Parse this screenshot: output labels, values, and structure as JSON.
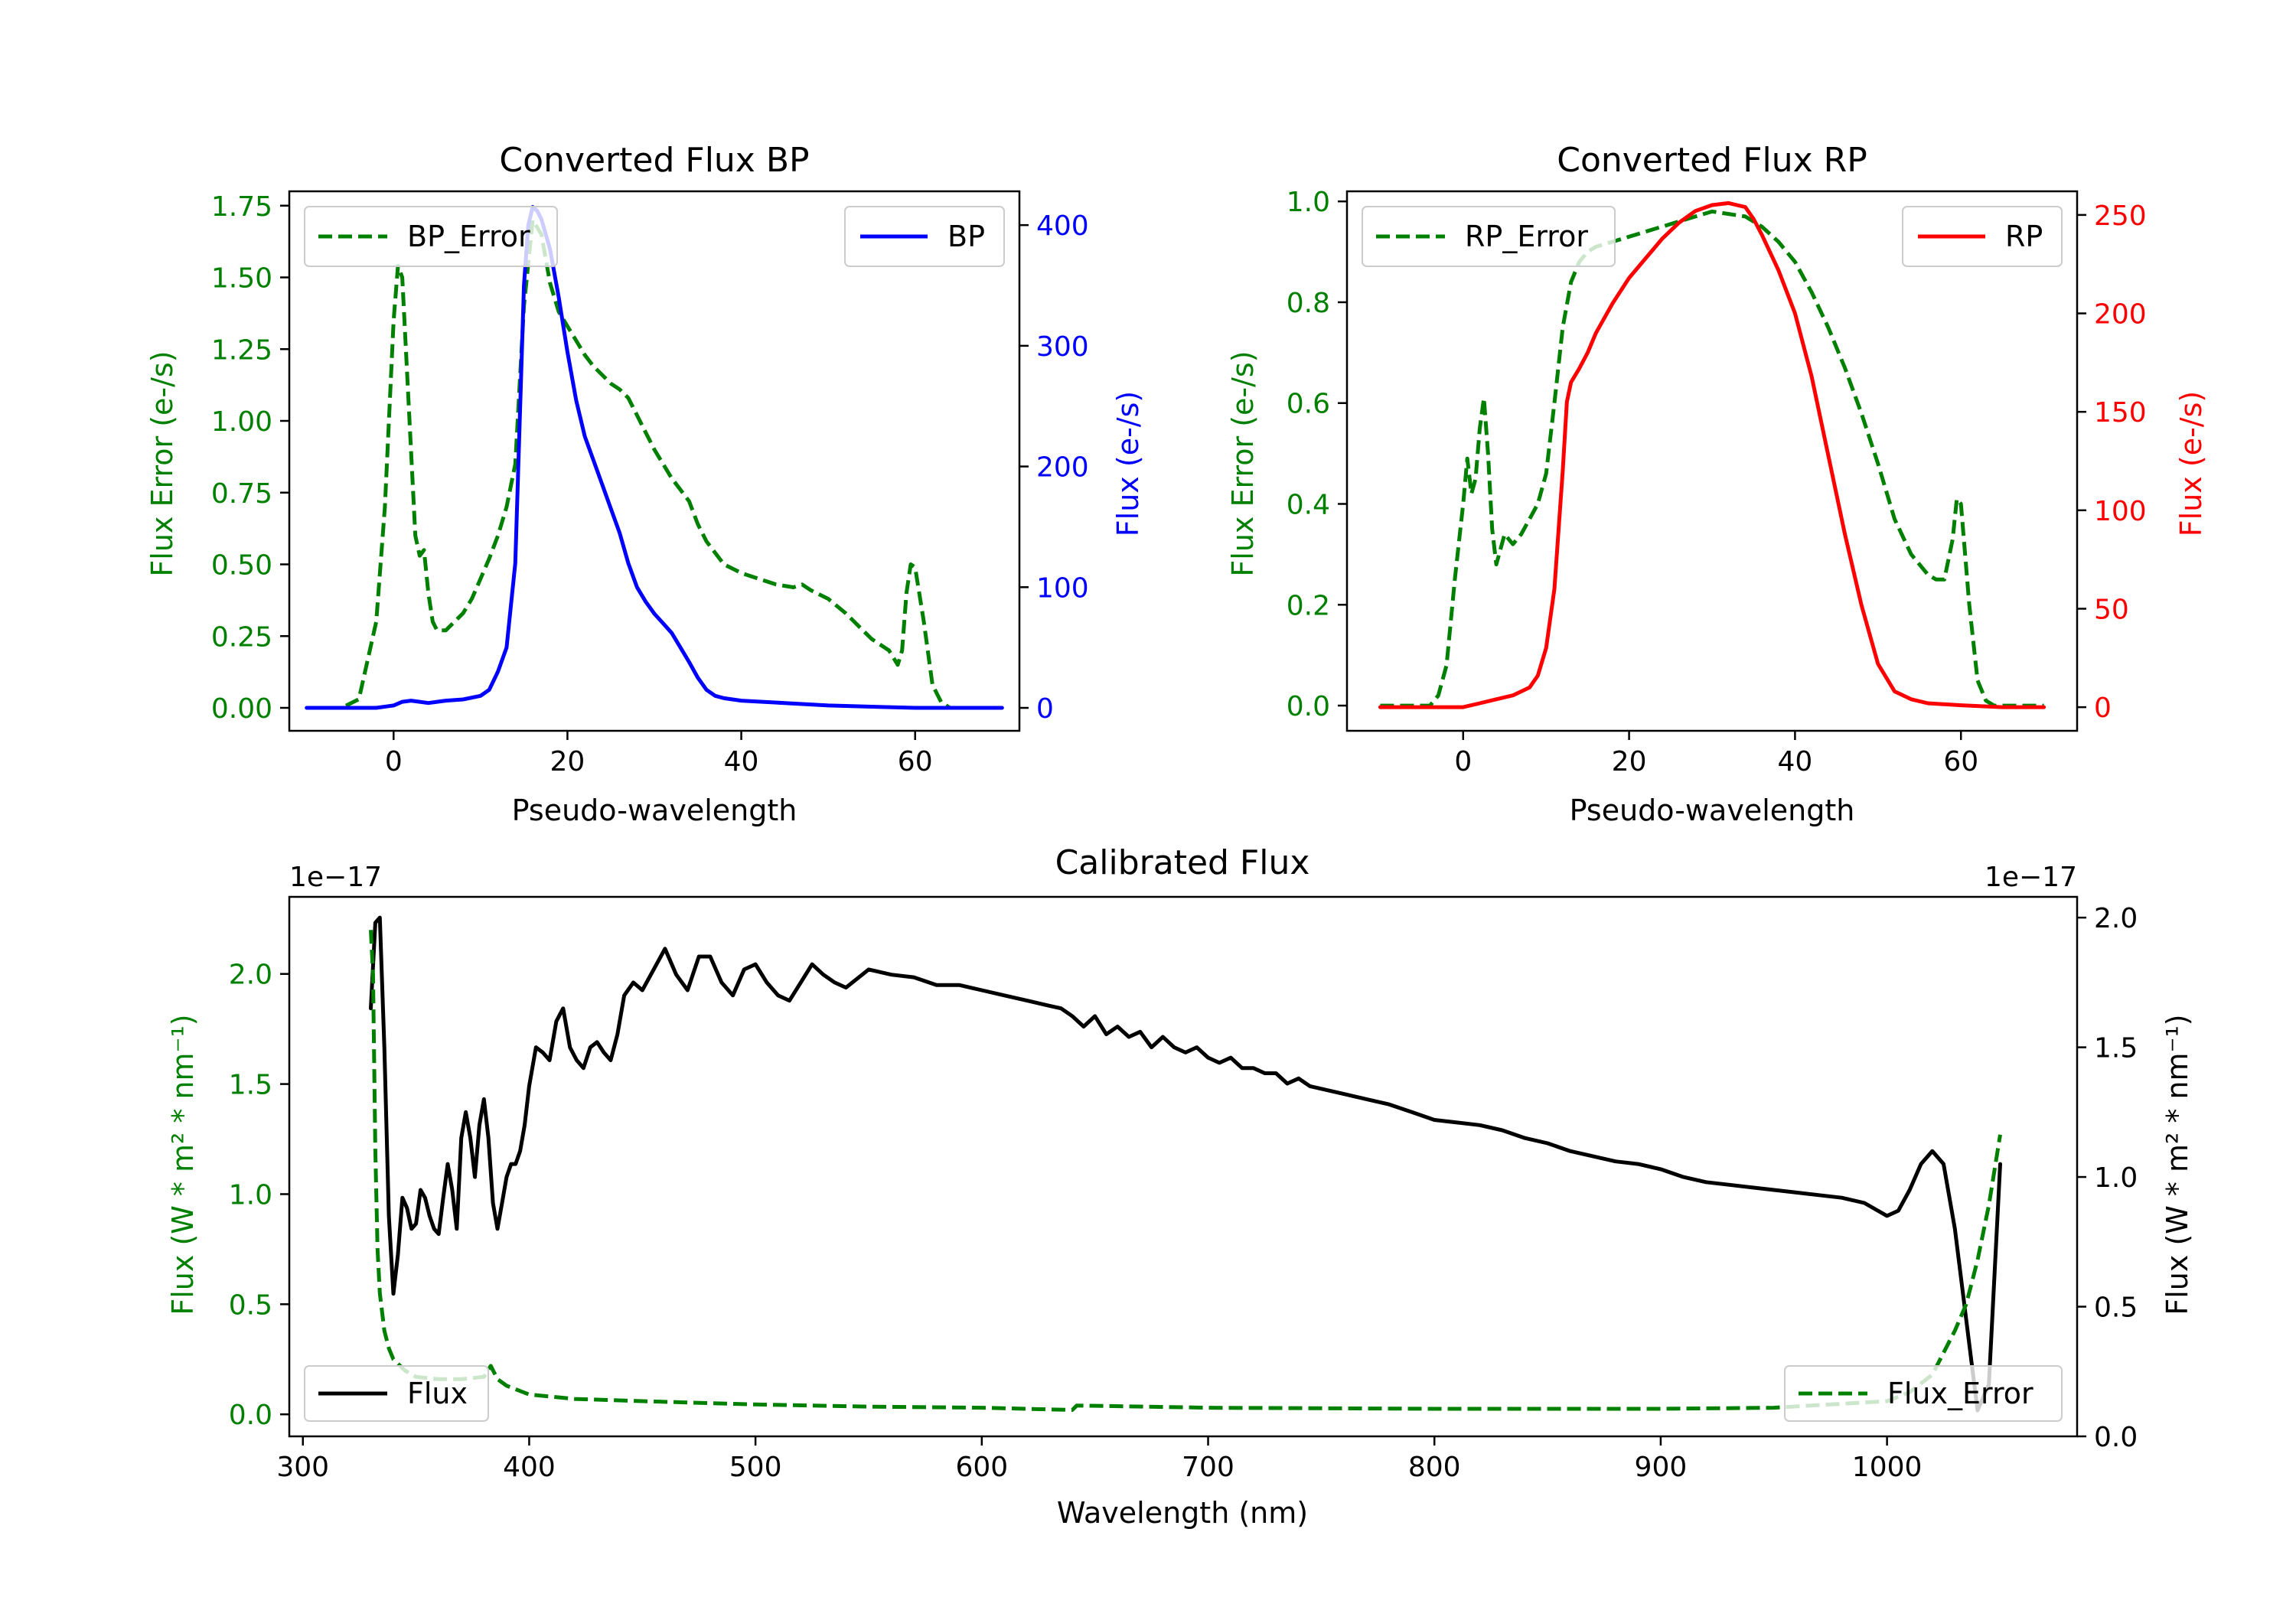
{
  "colors": {
    "bp": "#0000ff",
    "rp": "#ff0000",
    "error": "#008000",
    "flux": "#000000"
  },
  "chart_data": [
    {
      "type": "line",
      "title": "Converted Flux BP",
      "xlabel": "Pseudo-wavelength",
      "ylabel_left": "Flux Error (e-/s)",
      "ylabel_right": "Flux (e-/s)",
      "xlim": [
        -12,
        72
      ],
      "ylim_left": [
        -0.08,
        1.8
      ],
      "ylim_right": [
        -19,
        428
      ],
      "x_ticks": [
        0,
        20,
        40,
        60
      ],
      "x_tick_labels": [
        "0",
        "20",
        "40",
        "60"
      ],
      "y_left_ticks": [
        0,
        0.25,
        0.5,
        0.75,
        1.0,
        1.25,
        1.5,
        1.75
      ],
      "y_left_tick_labels": [
        "0.00",
        "0.25",
        "0.50",
        "0.75",
        "1.00",
        "1.25",
        "1.50",
        "1.75"
      ],
      "y_right_ticks": [
        0,
        100,
        200,
        300,
        400
      ],
      "y_right_tick_labels": [
        "0",
        "100",
        "200",
        "300",
        "400"
      ],
      "legend": {
        "left_entry": "BP_Error",
        "right_entry": "BP",
        "left_position": "upper-left",
        "right_position": "upper-right"
      },
      "series": [
        {
          "name": "BP_Error",
          "axis": "left",
          "style": "dashed",
          "x": [
            -10,
            -6,
            -4,
            -2,
            -1,
            0,
            0.5,
            1,
            2,
            2.5,
            3,
            3.5,
            4,
            4.5,
            5,
            6,
            7,
            8,
            9,
            10,
            11,
            12,
            13,
            14,
            15,
            16,
            17,
            18,
            19,
            20,
            21,
            22,
            23,
            24,
            25,
            26,
            27,
            28,
            29,
            30,
            31,
            32,
            33,
            34,
            35,
            36,
            37,
            38,
            40,
            42,
            44,
            46,
            47,
            48,
            50,
            52,
            54,
            55,
            56,
            57,
            58,
            58.5,
            59,
            59.5,
            60,
            61,
            62,
            63,
            64,
            66,
            70
          ],
          "values": [
            0,
            0,
            0.03,
            0.3,
            0.7,
            1.35,
            1.54,
            1.5,
            0.9,
            0.6,
            0.53,
            0.55,
            0.4,
            0.3,
            0.27,
            0.27,
            0.3,
            0.33,
            0.38,
            0.45,
            0.52,
            0.6,
            0.7,
            0.85,
            1.4,
            1.7,
            1.65,
            1.48,
            1.38,
            1.33,
            1.28,
            1.23,
            1.19,
            1.16,
            1.13,
            1.11,
            1.08,
            1.02,
            0.96,
            0.9,
            0.85,
            0.8,
            0.76,
            0.72,
            0.64,
            0.58,
            0.54,
            0.5,
            0.47,
            0.45,
            0.43,
            0.42,
            0.43,
            0.41,
            0.38,
            0.33,
            0.27,
            0.24,
            0.22,
            0.2,
            0.15,
            0.2,
            0.4,
            0.5,
            0.49,
            0.3,
            0.08,
            0.02,
            0,
            0,
            0
          ]
        },
        {
          "name": "BP",
          "axis": "right",
          "style": "solid",
          "x": [
            -10,
            -6,
            -4,
            -2,
            0,
            1,
            2,
            3,
            4,
            5,
            6,
            8,
            10,
            11,
            12,
            13,
            14,
            15,
            15.5,
            16,
            16.5,
            17,
            18,
            19,
            20,
            21,
            22,
            23,
            24,
            25,
            26,
            27,
            28,
            29,
            30,
            31,
            32,
            33,
            34,
            35,
            36,
            37,
            38,
            40,
            45,
            50,
            55,
            60,
            70
          ],
          "values": [
            0,
            0,
            0,
            0,
            2,
            5,
            6,
            5,
            4,
            5,
            6,
            7,
            10,
            15,
            30,
            50,
            120,
            350,
            400,
            415,
            412,
            405,
            380,
            340,
            295,
            255,
            225,
            205,
            185,
            165,
            145,
            120,
            100,
            88,
            78,
            70,
            62,
            50,
            38,
            25,
            15,
            10,
            8,
            6,
            4,
            2,
            1,
            0,
            0
          ]
        }
      ]
    },
    {
      "type": "line",
      "title": "Converted Flux RP",
      "xlabel": "Pseudo-wavelength",
      "ylabel_left": "Flux Error (e-/s)",
      "ylabel_right": "Flux (e-/s)",
      "xlim": [
        -14,
        74
      ],
      "ylim_left": [
        -0.05,
        1.02
      ],
      "ylim_right": [
        -12,
        262
      ],
      "x_ticks": [
        0,
        20,
        40,
        60
      ],
      "x_tick_labels": [
        "0",
        "20",
        "40",
        "60"
      ],
      "y_left_ticks": [
        0,
        0.2,
        0.4,
        0.6,
        0.8,
        1.0
      ],
      "y_left_tick_labels": [
        "0.0",
        "0.2",
        "0.4",
        "0.6",
        "0.8",
        "1.0"
      ],
      "y_right_ticks": [
        0,
        50,
        100,
        150,
        200,
        250
      ],
      "y_right_tick_labels": [
        "0",
        "50",
        "100",
        "150",
        "200",
        "250"
      ],
      "legend": {
        "left_entry": "RP_Error",
        "right_entry": "RP",
        "left_position": "upper-left",
        "right_position": "upper-right"
      },
      "series": [
        {
          "name": "RP_Error",
          "axis": "left",
          "style": "dashed",
          "x": [
            -10,
            -4,
            -3,
            -2,
            -1,
            0,
            0.5,
            1,
            1.5,
            2,
            2.5,
            3,
            3.5,
            4,
            5,
            6,
            7,
            8,
            9,
            10,
            11,
            12,
            13,
            14,
            15,
            16,
            18,
            20,
            22,
            24,
            26,
            28,
            30,
            32,
            34,
            36,
            38,
            40,
            42,
            44,
            46,
            48,
            50,
            52,
            54,
            55,
            56,
            57,
            58,
            59,
            59.5,
            60,
            61,
            62,
            63,
            64,
            66,
            70
          ],
          "values": [
            0,
            0,
            0.02,
            0.08,
            0.25,
            0.4,
            0.49,
            0.42,
            0.45,
            0.55,
            0.61,
            0.5,
            0.35,
            0.28,
            0.34,
            0.32,
            0.34,
            0.37,
            0.4,
            0.46,
            0.6,
            0.75,
            0.84,
            0.88,
            0.9,
            0.91,
            0.92,
            0.93,
            0.94,
            0.95,
            0.96,
            0.97,
            0.98,
            0.975,
            0.97,
            0.95,
            0.92,
            0.88,
            0.82,
            0.75,
            0.67,
            0.58,
            0.48,
            0.37,
            0.3,
            0.28,
            0.26,
            0.25,
            0.25,
            0.33,
            0.41,
            0.4,
            0.2,
            0.05,
            0.01,
            0,
            0,
            0
          ]
        },
        {
          "name": "RP",
          "axis": "right",
          "style": "solid",
          "x": [
            -10,
            -2,
            0,
            2,
            4,
            6,
            8,
            9,
            10,
            11,
            12,
            12.5,
            13,
            14,
            15,
            16,
            18,
            20,
            22,
            24,
            26,
            28,
            30,
            32,
            33,
            34,
            35,
            36,
            38,
            40,
            42,
            44,
            46,
            48,
            50,
            52,
            54,
            56,
            60,
            65,
            70
          ],
          "values": [
            0,
            0,
            0,
            2,
            4,
            6,
            10,
            16,
            30,
            60,
            120,
            155,
            165,
            172,
            180,
            190,
            205,
            218,
            228,
            238,
            246,
            252,
            255,
            256,
            255,
            254,
            248,
            240,
            222,
            200,
            168,
            128,
            88,
            52,
            22,
            8,
            4,
            2,
            1,
            0,
            0
          ]
        }
      ]
    },
    {
      "type": "line",
      "title": "Calibrated Flux",
      "xlabel": "Wavelength (nm)",
      "ylabel_left": "Flux (W * m² * nm⁻¹)",
      "ylabel_right": "Flux (W * m² * nm⁻¹)",
      "offset_left": "1e−17",
      "offset_right": "1e−17",
      "xlim": [
        294,
        1084
      ],
      "ylim_left": [
        -0.1,
        2.35
      ],
      "ylim_right": [
        0.0,
        2.08
      ],
      "x_ticks": [
        300,
        400,
        500,
        600,
        700,
        800,
        900,
        1000
      ],
      "x_tick_labels": [
        "300",
        "400",
        "500",
        "600",
        "700",
        "800",
        "900",
        "1000"
      ],
      "y_left_ticks": [
        0,
        0.5,
        1.0,
        1.5,
        2.0
      ],
      "y_left_tick_labels": [
        "0.0",
        "0.5",
        "1.0",
        "1.5",
        "2.0"
      ],
      "y_right_ticks": [
        0,
        0.5,
        1.0,
        1.5,
        2.0
      ],
      "y_right_tick_labels": [
        "0.0",
        "0.5",
        "1.0",
        "1.5",
        "2.0"
      ],
      "legend": {
        "left_entry": "Flux",
        "right_entry": "Flux_Error",
        "left_position": "lower-left",
        "right_position": "lower-right"
      },
      "series": [
        {
          "name": "Flux",
          "axis": "right",
          "style": "solid",
          "x": [
            330,
            332,
            334,
            336,
            338,
            340,
            342,
            344,
            346,
            348,
            350,
            352,
            354,
            356,
            358,
            360,
            362,
            364,
            366,
            368,
            370,
            372,
            374,
            376,
            378,
            380,
            382,
            384,
            386,
            388,
            390,
            392,
            394,
            396,
            398,
            400,
            403,
            406,
            409,
            412,
            415,
            418,
            421,
            424,
            427,
            430,
            433,
            436,
            439,
            442,
            446,
            450,
            455,
            460,
            465,
            470,
            475,
            480,
            485,
            490,
            495,
            500,
            505,
            510,
            515,
            520,
            525,
            530,
            535,
            540,
            550,
            560,
            570,
            580,
            590,
            600,
            610,
            620,
            630,
            635,
            640,
            645,
            650,
            655,
            660,
            665,
            670,
            675,
            680,
            685,
            690,
            695,
            700,
            705,
            710,
            715,
            720,
            725,
            730,
            735,
            740,
            745,
            750,
            760,
            770,
            780,
            790,
            800,
            810,
            820,
            830,
            840,
            850,
            860,
            870,
            880,
            890,
            900,
            910,
            920,
            930,
            940,
            950,
            960,
            970,
            980,
            990,
            1000,
            1005,
            1010,
            1015,
            1020,
            1025,
            1030,
            1035,
            1040,
            1045,
            1050
          ],
          "values": [
            1.65,
            1.98,
            2.0,
            1.5,
            0.85,
            0.55,
            0.7,
            0.92,
            0.88,
            0.8,
            0.82,
            0.95,
            0.92,
            0.85,
            0.8,
            0.78,
            0.92,
            1.05,
            0.95,
            0.8,
            1.15,
            1.25,
            1.15,
            1.0,
            1.2,
            1.3,
            1.15,
            0.9,
            0.8,
            0.9,
            1.0,
            1.05,
            1.05,
            1.1,
            1.2,
            1.35,
            1.5,
            1.48,
            1.45,
            1.6,
            1.65,
            1.5,
            1.45,
            1.42,
            1.5,
            1.52,
            1.48,
            1.45,
            1.55,
            1.7,
            1.75,
            1.72,
            1.8,
            1.88,
            1.78,
            1.72,
            1.85,
            1.85,
            1.75,
            1.7,
            1.8,
            1.82,
            1.75,
            1.7,
            1.68,
            1.75,
            1.82,
            1.78,
            1.75,
            1.73,
            1.8,
            1.78,
            1.77,
            1.74,
            1.74,
            1.72,
            1.7,
            1.68,
            1.66,
            1.65,
            1.62,
            1.58,
            1.62,
            1.55,
            1.58,
            1.54,
            1.56,
            1.5,
            1.54,
            1.5,
            1.48,
            1.5,
            1.46,
            1.44,
            1.46,
            1.42,
            1.42,
            1.4,
            1.4,
            1.36,
            1.38,
            1.35,
            1.34,
            1.32,
            1.3,
            1.28,
            1.25,
            1.22,
            1.21,
            1.2,
            1.18,
            1.15,
            1.13,
            1.1,
            1.08,
            1.06,
            1.05,
            1.03,
            1.0,
            0.98,
            0.97,
            0.96,
            0.95,
            0.94,
            0.93,
            0.92,
            0.9,
            0.85,
            0.87,
            0.95,
            1.05,
            1.1,
            1.05,
            0.8,
            0.45,
            0.1,
            0.2,
            1.05
          ]
        },
        {
          "name": "Flux_Error",
          "axis": "left",
          "style": "dashed",
          "x": [
            330,
            331,
            332,
            333,
            334,
            336,
            338,
            340,
            345,
            350,
            360,
            370,
            380,
            383,
            386,
            390,
            400,
            420,
            450,
            500,
            550,
            600,
            640,
            642,
            700,
            800,
            900,
            950,
            1000,
            1010,
            1020,
            1030,
            1035,
            1040,
            1045,
            1050
          ],
          "values": [
            2.2,
            2.0,
            1.2,
            0.75,
            0.55,
            0.38,
            0.3,
            0.25,
            0.2,
            0.17,
            0.16,
            0.16,
            0.17,
            0.22,
            0.16,
            0.13,
            0.09,
            0.07,
            0.06,
            0.045,
            0.035,
            0.03,
            0.02,
            0.04,
            0.03,
            0.025,
            0.025,
            0.03,
            0.06,
            0.1,
            0.18,
            0.38,
            0.5,
            0.7,
            0.95,
            1.27
          ]
        }
      ]
    }
  ]
}
